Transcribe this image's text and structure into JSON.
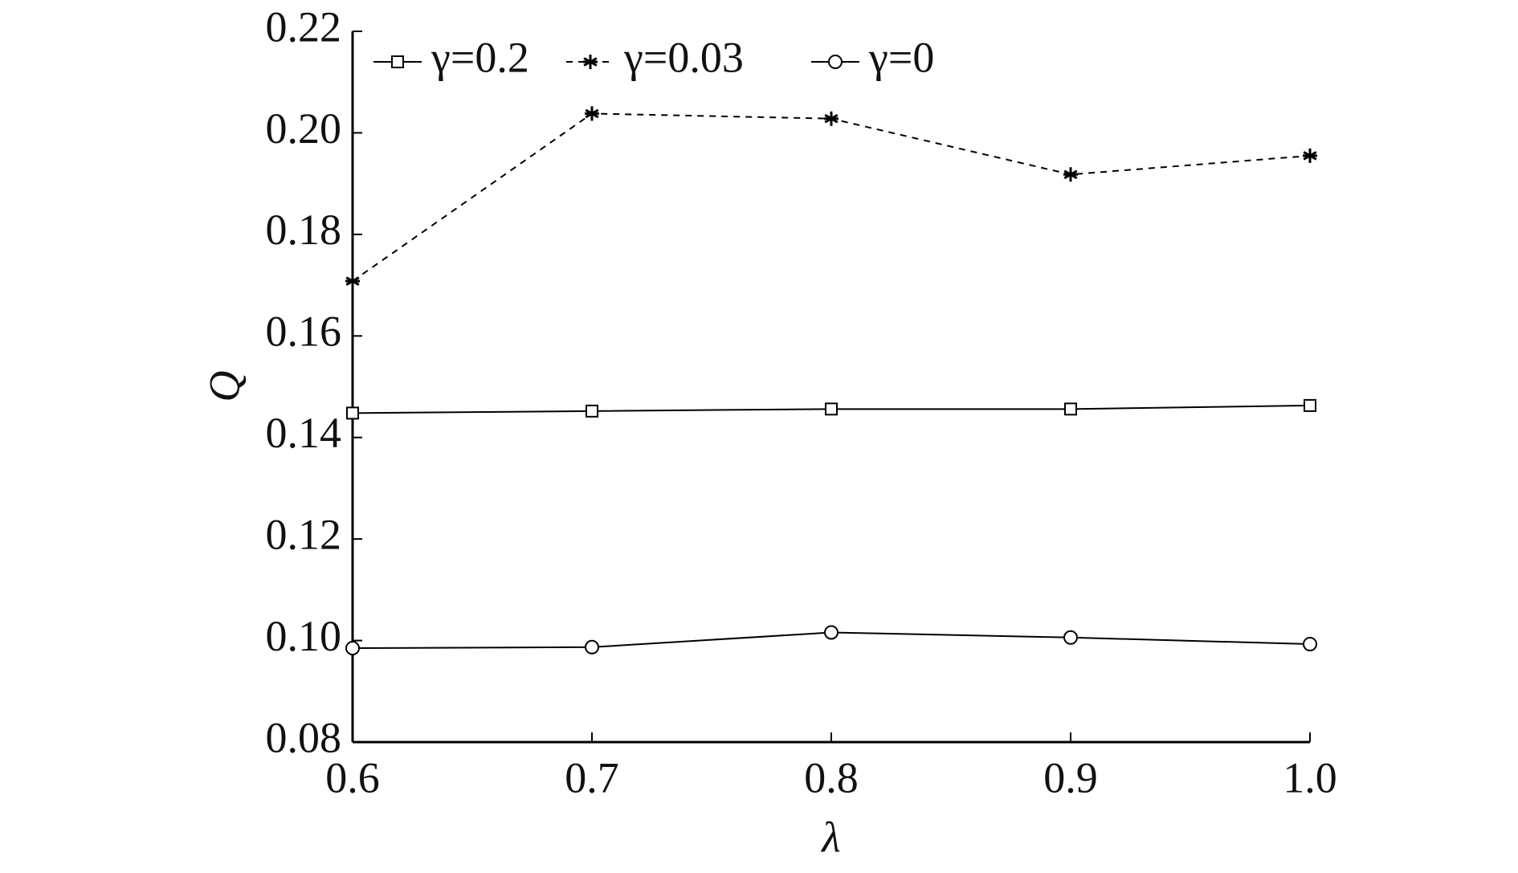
{
  "chart_data": {
    "type": "line",
    "x_label": "λ",
    "y_label": "Q",
    "x": [
      0.6,
      0.7,
      0.8,
      0.9,
      1.0
    ],
    "series": [
      {
        "name": "γ=0.2",
        "color": "#000000",
        "marker": "square",
        "dashed": false,
        "values": [
          0.1448,
          0.1452,
          0.1456,
          0.1456,
          0.1463
        ]
      },
      {
        "name": "γ=0.03",
        "color": "#000000",
        "marker": "asterisk",
        "dashed": true,
        "values": [
          0.1708,
          0.2038,
          0.2028,
          0.1918,
          0.1955
        ]
      },
      {
        "name": "γ=0",
        "color": "#000000",
        "marker": "circle",
        "dashed": false,
        "values": [
          0.0985,
          0.0987,
          0.1016,
          0.1006,
          0.0993
        ]
      }
    ],
    "xlim": [
      0.6,
      1.0
    ],
    "ylim": [
      0.08,
      0.22
    ],
    "xticks": [
      0.6,
      0.7,
      0.8,
      0.9,
      {
        "value": 1.0,
        "label": "1.0"
      }
    ],
    "yticks": [
      0.08,
      {
        "value": 0.1,
        "label": "0.10"
      },
      0.12,
      0.14,
      0.16,
      0.18,
      {
        "value": 0.2,
        "label": "0.20"
      },
      0.22
    ],
    "legend": "top"
  }
}
